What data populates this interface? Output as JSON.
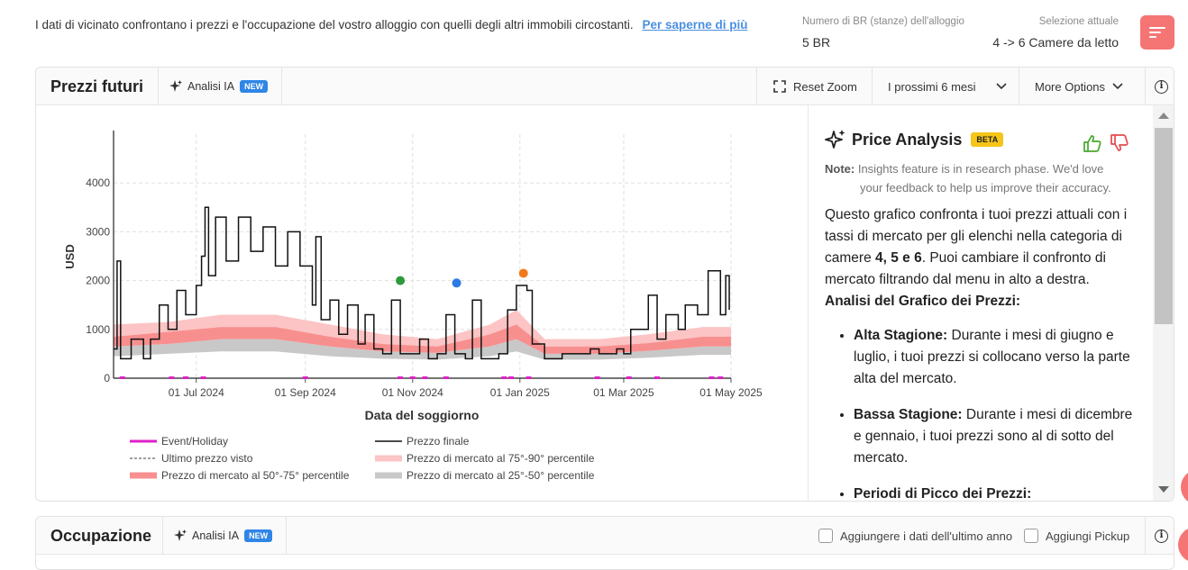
{
  "topbar": {
    "intro_text": "I dati di vicinato confrontano i prezzi e l'occupazione del vostro alloggio con quelli degli altri immobili circostanti.",
    "learn_more": "Per saperne di più",
    "br_label": "Numero di BR (stanze) dell'alloggio",
    "br_value": "5 BR",
    "selection_label": "Selezione attuale",
    "selection_value": "4 -> 6 Camere da letto"
  },
  "price_card": {
    "title": "Prezzi futuri",
    "ai_label": "Analisi IA",
    "new_badge": "NEW",
    "reset_zoom": "Reset Zoom",
    "period": "I prossimi 6 mesi",
    "more_options": "More Options"
  },
  "panel": {
    "title": "Price Analysis",
    "beta_badge": "BETA",
    "note_label": "Note:",
    "note_line1": "Insights feature is in research phase. We'd love",
    "note_line2": "your feedback to help us improve their accuracy.",
    "intro_1": "Questo grafico confronta i tuoi prezzi attuali con i tassi di mercato per gli elenchi nella categoria di camere",
    "intro_bold": "4, 5 e 6",
    "intro_2": ". Puoi cambiare il confronto di mercato filtrando dal menu in alto a destra.",
    "analysis_heading": "Analisi del Grafico dei Prezzi:",
    "bullets": [
      {
        "head": "Alta Stagione:",
        "text": "Durante i mesi di giugno e luglio, i tuoi prezzi si collocano verso la parte alta del mercato."
      },
      {
        "head": "Bassa Stagione:",
        "text": "Durante i mesi di dicembre e gennaio, i tuoi prezzi sono al di sotto del mercato."
      },
      {
        "head": "Periodi di Picco dei Prezzi:",
        "text": ""
      }
    ]
  },
  "occupancy_card": {
    "title": "Occupazione",
    "ai_label": "Analisi IA",
    "new_badge": "NEW",
    "last_year": "Aggiungere i dati dell'ultimo anno",
    "pickup": "Aggiungi Pickup"
  },
  "colors": {
    "accent_red": "#f57574",
    "ai_blue": "#2f86e6",
    "beta_yellow": "#f5c518",
    "band_75_90": "#fcc4c4",
    "band_50_75": "#f88f8f",
    "band_25_50": "#c8c8c8",
    "event": "#e020c8",
    "price_line": "#111111",
    "dot_green": "#2e9a3b",
    "dot_blue": "#2c7be5",
    "dot_orange": "#f07b1e"
  },
  "chart_data": {
    "type": "line",
    "ylabel": "USD",
    "xlabel": "Data del soggiorno",
    "ylim": [
      0,
      5000
    ],
    "yticks": [
      0,
      1000,
      2000,
      3000,
      4000
    ],
    "xlim": [
      "2024-05-15",
      "2025-05-01"
    ],
    "xticks": [
      "01 Jul 2024",
      "01 Sep 2024",
      "01 Nov 2024",
      "01 Jan 2025",
      "01 Mar 2025",
      "01 May 2025"
    ],
    "grid": true,
    "legend": [
      {
        "label": "Event/Holiday",
        "kind": "event"
      },
      {
        "label": "Prezzo finale",
        "kind": "line"
      },
      {
        "label": "Ultimo prezzo visto",
        "kind": "dashed"
      },
      {
        "label": "Prezzo di mercato al 75°-90° percentile",
        "kind": "band75"
      },
      {
        "label": "Prezzo di mercato al 50°-75° percentile",
        "kind": "band50"
      },
      {
        "label": "Prezzo di mercato al 25°-50° percentile",
        "kind": "band25"
      }
    ],
    "final_price": [
      [
        "2024-05-15",
        600
      ],
      [
        "2024-05-17",
        2400
      ],
      [
        "2024-05-19",
        400
      ],
      [
        "2024-05-25",
        800
      ],
      [
        "2024-06-01",
        400
      ],
      [
        "2024-06-05",
        800
      ],
      [
        "2024-06-10",
        1500
      ],
      [
        "2024-06-15",
        1000
      ],
      [
        "2024-06-20",
        1800
      ],
      [
        "2024-06-25",
        1300
      ],
      [
        "2024-07-01",
        1900
      ],
      [
        "2024-07-04",
        2500
      ],
      [
        "2024-07-06",
        3500
      ],
      [
        "2024-07-08",
        2100
      ],
      [
        "2024-07-12",
        3300
      ],
      [
        "2024-07-18",
        2400
      ],
      [
        "2024-07-25",
        3300
      ],
      [
        "2024-08-01",
        2600
      ],
      [
        "2024-08-08",
        3100
      ],
      [
        "2024-08-15",
        2300
      ],
      [
        "2024-08-22",
        3000
      ],
      [
        "2024-08-29",
        2300
      ],
      [
        "2024-09-05",
        1500
      ],
      [
        "2024-09-07",
        2900
      ],
      [
        "2024-09-10",
        1200
      ],
      [
        "2024-09-15",
        1600
      ],
      [
        "2024-09-20",
        900
      ],
      [
        "2024-09-25",
        1500
      ],
      [
        "2024-10-01",
        700
      ],
      [
        "2024-10-05",
        1300
      ],
      [
        "2024-10-10",
        600
      ],
      [
        "2024-10-15",
        500
      ],
      [
        "2024-10-20",
        1600
      ],
      [
        "2024-10-25",
        500
      ],
      [
        "2024-11-01",
        500
      ],
      [
        "2024-11-05",
        800
      ],
      [
        "2024-11-10",
        400
      ],
      [
        "2024-11-15",
        500
      ],
      [
        "2024-11-20",
        1300
      ],
      [
        "2024-11-25",
        500
      ],
      [
        "2024-12-01",
        400
      ],
      [
        "2024-12-05",
        1600
      ],
      [
        "2024-12-10",
        400
      ],
      [
        "2024-12-20",
        500
      ],
      [
        "2024-12-25",
        1400
      ],
      [
        "2024-12-30",
        1900
      ],
      [
        "2025-01-05",
        1800
      ],
      [
        "2025-01-08",
        700
      ],
      [
        "2025-01-15",
        400
      ],
      [
        "2025-01-25",
        500
      ],
      [
        "2025-02-01",
        500
      ],
      [
        "2025-02-10",
        600
      ],
      [
        "2025-02-15",
        500
      ],
      [
        "2025-02-25",
        600
      ],
      [
        "2025-03-01",
        500
      ],
      [
        "2025-03-05",
        1000
      ],
      [
        "2025-03-15",
        1700
      ],
      [
        "2025-03-20",
        800
      ],
      [
        "2025-03-25",
        1300
      ],
      [
        "2025-04-01",
        1000
      ],
      [
        "2025-04-05",
        1500
      ],
      [
        "2025-04-12",
        1300
      ],
      [
        "2025-04-18",
        2200
      ],
      [
        "2025-04-25",
        1300
      ],
      [
        "2025-04-28",
        2100
      ],
      [
        "2025-04-30",
        1400
      ]
    ],
    "bands": [
      [
        "2024-05-15",
        450,
        650,
        850,
        1100
      ],
      [
        "2024-06-15",
        500,
        700,
        950,
        1150
      ],
      [
        "2024-07-15",
        550,
        800,
        1050,
        1300
      ],
      [
        "2024-08-15",
        550,
        800,
        1050,
        1300
      ],
      [
        "2024-09-15",
        450,
        650,
        850,
        1100
      ],
      [
        "2024-10-15",
        400,
        550,
        700,
        900
      ],
      [
        "2024-11-15",
        380,
        520,
        650,
        800
      ],
      [
        "2024-12-15",
        450,
        650,
        900,
        1100
      ],
      [
        "2024-12-30",
        550,
        800,
        1100,
        1400
      ],
      [
        "2025-01-15",
        380,
        500,
        650,
        800
      ],
      [
        "2025-02-15",
        380,
        500,
        650,
        800
      ],
      [
        "2025-03-15",
        420,
        560,
        720,
        900
      ],
      [
        "2025-04-15",
        480,
        650,
        850,
        1050
      ],
      [
        "2025-05-01",
        480,
        650,
        850,
        1050
      ]
    ],
    "events": [
      "2024-05-20",
      "2024-06-17",
      "2024-06-25",
      "2024-07-05",
      "2024-09-01",
      "2024-10-25",
      "2024-11-01",
      "2024-11-08",
      "2024-11-20",
      "2024-12-23",
      "2024-12-27",
      "2025-01-06",
      "2025-02-14",
      "2025-03-04",
      "2025-03-20",
      "2025-04-20",
      "2025-04-25"
    ],
    "markers": [
      {
        "x": "2024-10-25",
        "y": 2000,
        "color": "#2e9a3b"
      },
      {
        "x": "2024-11-26",
        "y": 1950,
        "color": "#2c7be5"
      },
      {
        "x": "2025-01-03",
        "y": 2150,
        "color": "#f07b1e"
      }
    ]
  }
}
